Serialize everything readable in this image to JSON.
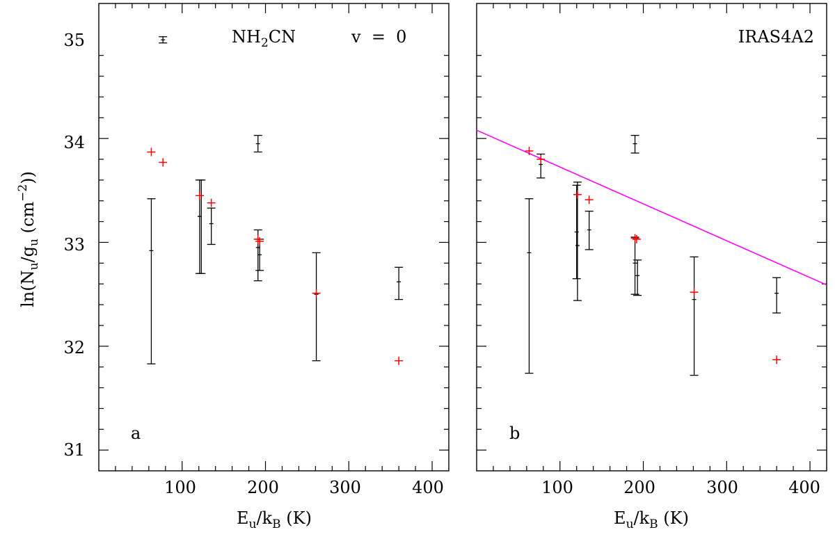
{
  "figure": {
    "ylabel_parts": [
      "ln(N",
      "u",
      "/g",
      "u",
      " (cm",
      "−2",
      "))"
    ],
    "xlabel_parts": [
      "E",
      "u",
      "/k",
      "B",
      " (K)"
    ]
  },
  "chart_data": [
    {
      "type": "scatter",
      "panel_label": "a",
      "molecule_parts": [
        "NH",
        "2",
        "CN"
      ],
      "state_label": "v  =  0",
      "xlim": [
        0,
        420
      ],
      "ylim": [
        30.8,
        35.3
      ],
      "xticks": [
        100,
        200,
        300,
        400
      ],
      "xtick_labels": [
        "100",
        "200",
        "300",
        "400"
      ],
      "yticks": [
        31,
        32,
        33,
        34,
        35
      ],
      "ytick_labels": [
        "31",
        "32",
        "33",
        "34",
        "35"
      ],
      "observed": [
        {
          "x": 77,
          "y": 34.95,
          "lo": 34.92,
          "hi": 34.98
        },
        {
          "x": 63,
          "y": 32.92,
          "lo": 31.83,
          "hi": 33.42
        },
        {
          "x": 121,
          "y": 33.25,
          "lo": 32.7,
          "hi": 33.6
        },
        {
          "x": 123,
          "y": 33.45,
          "lo": 32.7,
          "hi": 33.6
        },
        {
          "x": 135,
          "y": 33.18,
          "lo": 32.98,
          "hi": 33.33
        },
        {
          "x": 191,
          "y": 33.95,
          "lo": 33.87,
          "hi": 34.03
        },
        {
          "x": 191,
          "y": 32.95,
          "lo": 32.63,
          "hi": 33.12
        },
        {
          "x": 193,
          "y": 32.88,
          "lo": 32.73,
          "hi": 33.03
        },
        {
          "x": 261,
          "y": 32.5,
          "lo": 31.86,
          "hi": 32.9
        },
        {
          "x": 360,
          "y": 32.62,
          "lo": 32.45,
          "hi": 32.76
        }
      ],
      "model": [
        {
          "x": 63,
          "y": 33.87
        },
        {
          "x": 77,
          "y": 33.77
        },
        {
          "x": 121,
          "y": 33.45
        },
        {
          "x": 135,
          "y": 33.38
        },
        {
          "x": 191,
          "y": 33.03
        },
        {
          "x": 193,
          "y": 33.01
        },
        {
          "x": 261,
          "y": 32.51
        },
        {
          "x": 360,
          "y": 31.86
        }
      ],
      "fit_line": null,
      "colors": {
        "observed": "#000000",
        "model": "#ff0000",
        "fit": "#ff00ff"
      }
    },
    {
      "type": "scatter",
      "panel_label": "b",
      "source_label": "IRAS4A2",
      "xlim": [
        0,
        420
      ],
      "ylim": [
        30.8,
        35.3
      ],
      "xticks": [
        100,
        200,
        300,
        400
      ],
      "xtick_labels": [
        "100",
        "200",
        "300",
        "400"
      ],
      "yticks": [
        31,
        32,
        33,
        34,
        35
      ],
      "observed": [
        {
          "x": 63,
          "y": 32.9,
          "lo": 31.74,
          "hi": 33.42
        },
        {
          "x": 77,
          "y": 33.75,
          "lo": 33.62,
          "hi": 33.85
        },
        {
          "x": 120,
          "y": 33.1,
          "lo": 32.65,
          "hi": 33.55
        },
        {
          "x": 121,
          "y": 32.97,
          "lo": 32.44,
          "hi": 33.58
        },
        {
          "x": 135,
          "y": 33.12,
          "lo": 32.93,
          "hi": 33.3
        },
        {
          "x": 190,
          "y": 33.95,
          "lo": 33.86,
          "hi": 34.03
        },
        {
          "x": 190,
          "y": 32.8,
          "lo": 32.5,
          "hi": 33.05
        },
        {
          "x": 193,
          "y": 32.68,
          "lo": 32.49,
          "hi": 32.83
        },
        {
          "x": 261,
          "y": 32.45,
          "lo": 31.72,
          "hi": 32.86
        },
        {
          "x": 360,
          "y": 32.51,
          "lo": 32.32,
          "hi": 32.66
        }
      ],
      "model": [
        {
          "x": 63,
          "y": 33.88
        },
        {
          "x": 77,
          "y": 33.8
        },
        {
          "x": 121,
          "y": 33.46
        },
        {
          "x": 135,
          "y": 33.41
        },
        {
          "x": 190,
          "y": 33.04
        },
        {
          "x": 192,
          "y": 33.03
        },
        {
          "x": 261,
          "y": 32.52
        },
        {
          "x": 360,
          "y": 31.87
        }
      ],
      "fit_line": {
        "x": [
          0,
          420
        ],
        "y": [
          34.08,
          32.59
        ]
      },
      "colors": {
        "observed": "#000000",
        "model": "#ff0000",
        "fit": "#ff00ff"
      }
    }
  ]
}
